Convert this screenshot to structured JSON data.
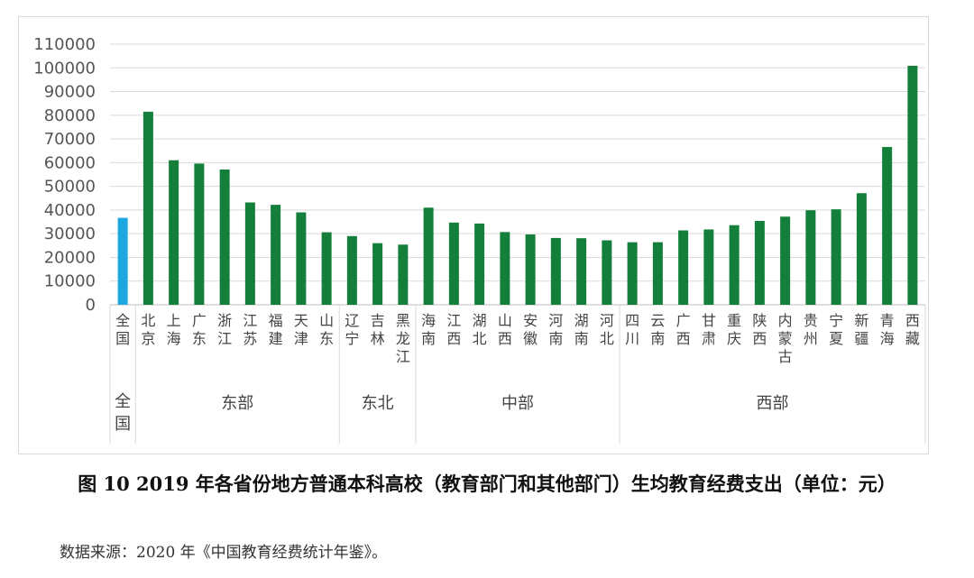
{
  "chart_data": {
    "type": "bar",
    "categories": [
      "全国",
      "北京",
      "上海",
      "广东",
      "浙江",
      "江苏",
      "福建",
      "天津",
      "山东",
      "辽宁",
      "吉林",
      "黑龙江",
      "海南",
      "江西",
      "湖北",
      "山西",
      "安徽",
      "河南",
      "湖南",
      "河北",
      "四川",
      "云南",
      "广西",
      "甘肃",
      "重庆",
      "陕西",
      "内蒙古",
      "贵州",
      "宁夏",
      "新疆",
      "青海",
      "西藏"
    ],
    "values": [
      36700,
      81500,
      61000,
      59600,
      57100,
      43200,
      42200,
      39000,
      30600,
      29000,
      26000,
      25400,
      41000,
      34700,
      34300,
      30700,
      29700,
      28200,
      28100,
      27200,
      26400,
      26400,
      31400,
      31800,
      33600,
      35400,
      37200,
      39900,
      40300,
      47100,
      66600,
      100900
    ],
    "colors": [
      "#1ea6e0",
      "#137f3a",
      "#137f3a",
      "#137f3a",
      "#137f3a",
      "#137f3a",
      "#137f3a",
      "#137f3a",
      "#137f3a",
      "#137f3a",
      "#137f3a",
      "#137f3a",
      "#137f3a",
      "#137f3a",
      "#137f3a",
      "#137f3a",
      "#137f3a",
      "#137f3a",
      "#137f3a",
      "#137f3a",
      "#137f3a",
      "#137f3a",
      "#137f3a",
      "#137f3a",
      "#137f3a",
      "#137f3a",
      "#137f3a",
      "#137f3a",
      "#137f3a",
      "#137f3a",
      "#137f3a",
      "#137f3a"
    ],
    "groups": [
      {
        "label": "全国",
        "start": 0,
        "end": 0
      },
      {
        "label": "东部",
        "start": 1,
        "end": 8
      },
      {
        "label": "东北",
        "start": 9,
        "end": 11
      },
      {
        "label": "中部",
        "start": 12,
        "end": 19
      },
      {
        "label": "西部",
        "start": 20,
        "end": 31
      }
    ],
    "yticks": [
      0,
      10000,
      20000,
      30000,
      40000,
      50000,
      60000,
      70000,
      80000,
      90000,
      100000,
      110000
    ],
    "ylim": [
      0,
      110000
    ],
    "grid": true,
    "legend": "none",
    "title": "",
    "xlabel": "",
    "ylabel": ""
  },
  "caption": "图 10 2019 年各省份地方普通本科高校（教育部门和其他部门）生均教育经费支出（单位：元）",
  "source": "数据来源：2020 年《中国教育经费统计年鉴》。"
}
